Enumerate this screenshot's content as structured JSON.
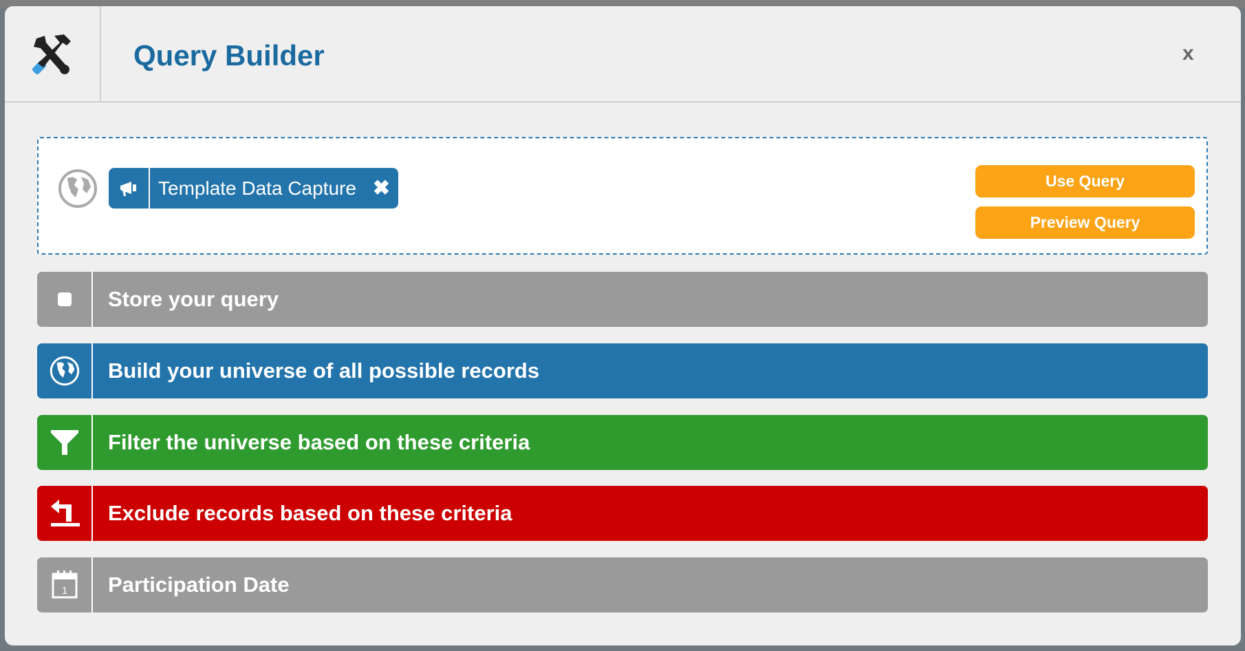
{
  "header": {
    "title": "Query Builder",
    "icon": "tools-icon",
    "close_label": "x"
  },
  "query": {
    "universe_icon": "globe-icon",
    "chip": {
      "icon": "megaphone-icon",
      "label": "Template Data Capture",
      "remove_label": "✖"
    },
    "use_query_label": "Use Query",
    "preview_query_label": "Preview Query"
  },
  "sections": [
    {
      "label": "Store your query",
      "icon": "square-icon",
      "color": "#9a9a9a"
    },
    {
      "label": "Build your universe of all possible records",
      "icon": "globe-icon",
      "color": "#2374ab"
    },
    {
      "label": "Filter the universe based on these criteria",
      "icon": "funnel-icon",
      "color": "#2f9b2f"
    },
    {
      "label": "Exclude records based on these criteria",
      "icon": "return-arrow-icon",
      "color": "#cc0000"
    },
    {
      "label": "Participation Date",
      "icon": "calendar-icon",
      "color": "#9a9a9a"
    }
  ],
  "colors": {
    "accent": "#1a6aa0",
    "button": "#fca316"
  }
}
